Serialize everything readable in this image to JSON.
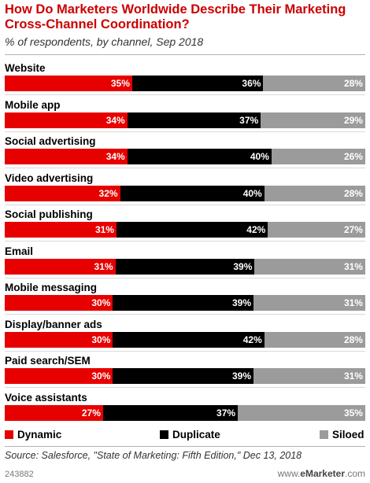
{
  "chart_data": {
    "type": "bar",
    "stacked": true,
    "orientation": "horizontal",
    "title": "How Do Marketers Worldwide Describe Their Marketing Cross-Channel Coordination?",
    "subtitle": "% of respondents, by channel, Sep 2018",
    "categories": [
      "Website",
      "Mobile app",
      "Social advertising",
      "Video advertising",
      "Social publishing",
      "Email",
      "Mobile messaging",
      "Display/banner ads",
      "Paid search/SEM",
      "Voice assistants"
    ],
    "series": [
      {
        "name": "Dynamic",
        "color": "#e60000",
        "values": [
          35,
          34,
          34,
          32,
          31,
          31,
          30,
          30,
          30,
          27
        ]
      },
      {
        "name": "Duplicate",
        "color": "#000000",
        "values": [
          36,
          37,
          40,
          40,
          42,
          39,
          39,
          42,
          39,
          37
        ]
      },
      {
        "name": "Siloed",
        "color": "#9b9b9b",
        "values": [
          28,
          29,
          26,
          28,
          27,
          31,
          31,
          28,
          31,
          35
        ]
      }
    ],
    "value_suffix": "%",
    "legend_position": "bottom",
    "grid": false
  },
  "footer": {
    "source": "Source: Salesforce, \"State of Marketing: Fifth Edition,\" Dec 13, 2018",
    "chart_id": "243882",
    "brand_prefix": "www.",
    "brand_name": "eMarketer",
    "brand_suffix": ".com"
  }
}
